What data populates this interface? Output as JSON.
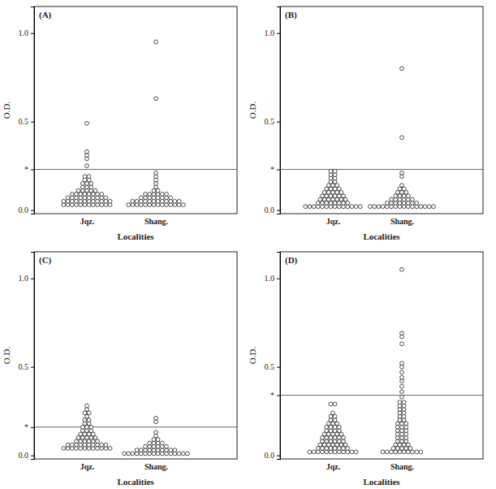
{
  "chart_data": [
    {
      "type": "dot",
      "title": "(A)",
      "x_label": "Localities",
      "y_label": "O.D.",
      "categories": [
        "Jqz.",
        "Shang."
      ],
      "marker": "open-circle",
      "color": "#222222",
      "ylim": [
        -0.02,
        1.15
      ],
      "yticks": [
        {
          "value": 0,
          "label": "0.0"
        },
        {
          "value": 0.5,
          "label": "0.5"
        },
        {
          "value": 1,
          "label": "1.0"
        },
        {
          "value": 0.23,
          "label": "*"
        }
      ],
      "cutoff": 0.23,
      "values": [
        [
          0.03,
          0.03,
          0.03,
          0.03,
          0.03,
          0.03,
          0.03,
          0.03,
          0.03,
          0.03,
          0.03,
          0.03,
          0.05,
          0.05,
          0.05,
          0.05,
          0.05,
          0.05,
          0.05,
          0.05,
          0.05,
          0.05,
          0.05,
          0.05,
          0.07,
          0.07,
          0.07,
          0.07,
          0.07,
          0.07,
          0.07,
          0.07,
          0.07,
          0.07,
          0.09,
          0.09,
          0.09,
          0.09,
          0.09,
          0.09,
          0.09,
          0.09,
          0.11,
          0.11,
          0.11,
          0.11,
          0.11,
          0.13,
          0.13,
          0.13,
          0.15,
          0.15,
          0.15,
          0.17,
          0.17,
          0.19,
          0.19,
          0.25,
          0.29,
          0.31,
          0.33,
          0.49
        ],
        [
          0.03,
          0.03,
          0.03,
          0.03,
          0.03,
          0.03,
          0.03,
          0.03,
          0.03,
          0.03,
          0.03,
          0.03,
          0.03,
          0.03,
          0.05,
          0.05,
          0.05,
          0.05,
          0.05,
          0.05,
          0.05,
          0.05,
          0.05,
          0.05,
          0.05,
          0.05,
          0.07,
          0.07,
          0.07,
          0.07,
          0.07,
          0.07,
          0.07,
          0.07,
          0.09,
          0.09,
          0.09,
          0.09,
          0.09,
          0.09,
          0.11,
          0.11,
          0.13,
          0.15,
          0.17,
          0.19,
          0.21,
          0.63,
          0.95
        ]
      ]
    },
    {
      "type": "dot",
      "title": "(B)",
      "x_label": "Localities",
      "y_label": "O.D.",
      "categories": [
        "Jqz.",
        "Shang."
      ],
      "marker": "open-circle",
      "color": "#222222",
      "ylim": [
        -0.02,
        1.15
      ],
      "yticks": [
        {
          "value": 0,
          "label": "0.0"
        },
        {
          "value": 0.5,
          "label": "0.5"
        },
        {
          "value": 1,
          "label": "1.0"
        },
        {
          "value": 0.23,
          "label": "*"
        }
      ],
      "cutoff": 0.23,
      "values": [
        [
          0.02,
          0.02,
          0.02,
          0.02,
          0.02,
          0.02,
          0.02,
          0.02,
          0.02,
          0.02,
          0.02,
          0.02,
          0.02,
          0.02,
          0.04,
          0.04,
          0.04,
          0.04,
          0.04,
          0.04,
          0.04,
          0.04,
          0.06,
          0.06,
          0.06,
          0.06,
          0.06,
          0.06,
          0.06,
          0.08,
          0.08,
          0.08,
          0.08,
          0.08,
          0.08,
          0.1,
          0.1,
          0.1,
          0.1,
          0.1,
          0.12,
          0.12,
          0.12,
          0.12,
          0.14,
          0.14,
          0.14,
          0.16,
          0.16,
          0.18,
          0.18,
          0.2,
          0.2,
          0.22,
          0.22
        ],
        [
          0.02,
          0.02,
          0.02,
          0.02,
          0.02,
          0.02,
          0.02,
          0.02,
          0.02,
          0.02,
          0.02,
          0.02,
          0.02,
          0.02,
          0.02,
          0.02,
          0.04,
          0.04,
          0.04,
          0.04,
          0.04,
          0.04,
          0.04,
          0.04,
          0.06,
          0.06,
          0.06,
          0.06,
          0.06,
          0.06,
          0.08,
          0.08,
          0.08,
          0.08,
          0.1,
          0.1,
          0.1,
          0.12,
          0.12,
          0.14,
          0.19,
          0.21,
          0.41,
          0.8
        ]
      ]
    },
    {
      "type": "dot",
      "title": "(C)",
      "x_label": "Localities",
      "y_label": "O.D.",
      "categories": [
        "Jqz.",
        "Shang."
      ],
      "marker": "open-circle",
      "color": "#222222",
      "ylim": [
        -0.02,
        1.15
      ],
      "yticks": [
        {
          "value": 0,
          "label": "0.0"
        },
        {
          "value": 0.5,
          "label": "0.5"
        },
        {
          "value": 1,
          "label": "1.0"
        },
        {
          "value": 0.16,
          "label": "*"
        }
      ],
      "cutoff": 0.16,
      "values": [
        [
          0.04,
          0.04,
          0.04,
          0.04,
          0.04,
          0.04,
          0.04,
          0.04,
          0.04,
          0.04,
          0.04,
          0.04,
          0.06,
          0.06,
          0.06,
          0.06,
          0.06,
          0.06,
          0.06,
          0.06,
          0.06,
          0.06,
          0.08,
          0.08,
          0.08,
          0.08,
          0.08,
          0.08,
          0.1,
          0.1,
          0.1,
          0.1,
          0.1,
          0.12,
          0.12,
          0.12,
          0.12,
          0.14,
          0.14,
          0.14,
          0.16,
          0.16,
          0.16,
          0.18,
          0.18,
          0.2,
          0.2,
          0.22,
          0.24,
          0.24,
          0.26,
          0.28
        ],
        [
          0.01,
          0.01,
          0.01,
          0.01,
          0.01,
          0.01,
          0.01,
          0.01,
          0.01,
          0.01,
          0.01,
          0.01,
          0.01,
          0.01,
          0.01,
          0.01,
          0.03,
          0.03,
          0.03,
          0.03,
          0.03,
          0.03,
          0.03,
          0.03,
          0.03,
          0.03,
          0.05,
          0.05,
          0.05,
          0.05,
          0.05,
          0.05,
          0.07,
          0.07,
          0.07,
          0.07,
          0.09,
          0.09,
          0.11,
          0.13,
          0.19,
          0.21
        ]
      ]
    },
    {
      "type": "dot",
      "title": "(D)",
      "x_label": "Localities",
      "y_label": "O.D.",
      "categories": [
        "Jqz.",
        "Shang."
      ],
      "marker": "open-circle",
      "color": "#222222",
      "ylim": [
        -0.02,
        1.15
      ],
      "yticks": [
        {
          "value": 0,
          "label": "0.0"
        },
        {
          "value": 0.5,
          "label": "0.5"
        },
        {
          "value": 1,
          "label": "1.0"
        },
        {
          "value": 0.34,
          "label": "*"
        }
      ],
      "cutoff": 0.34,
      "values": [
        [
          0.02,
          0.02,
          0.02,
          0.02,
          0.02,
          0.02,
          0.02,
          0.02,
          0.02,
          0.02,
          0.02,
          0.02,
          0.04,
          0.04,
          0.04,
          0.04,
          0.04,
          0.04,
          0.04,
          0.04,
          0.06,
          0.06,
          0.06,
          0.06,
          0.06,
          0.06,
          0.06,
          0.08,
          0.08,
          0.08,
          0.08,
          0.08,
          0.08,
          0.1,
          0.1,
          0.1,
          0.1,
          0.1,
          0.1,
          0.12,
          0.12,
          0.12,
          0.12,
          0.12,
          0.14,
          0.14,
          0.14,
          0.14,
          0.16,
          0.16,
          0.16,
          0.16,
          0.18,
          0.18,
          0.18,
          0.2,
          0.2,
          0.22,
          0.22,
          0.24,
          0.29,
          0.29
        ],
        [
          0.02,
          0.02,
          0.02,
          0.02,
          0.02,
          0.02,
          0.02,
          0.02,
          0.02,
          0.02,
          0.04,
          0.04,
          0.04,
          0.04,
          0.04,
          0.06,
          0.06,
          0.06,
          0.06,
          0.08,
          0.08,
          0.08,
          0.1,
          0.1,
          0.1,
          0.12,
          0.12,
          0.12,
          0.14,
          0.14,
          0.14,
          0.16,
          0.16,
          0.16,
          0.18,
          0.18,
          0.18,
          0.2,
          0.2,
          0.22,
          0.22,
          0.24,
          0.24,
          0.26,
          0.26,
          0.28,
          0.28,
          0.3,
          0.3,
          0.33,
          0.36,
          0.39,
          0.42,
          0.44,
          0.47,
          0.5,
          0.52,
          0.63,
          0.67,
          0.69,
          1.05
        ]
      ]
    }
  ]
}
